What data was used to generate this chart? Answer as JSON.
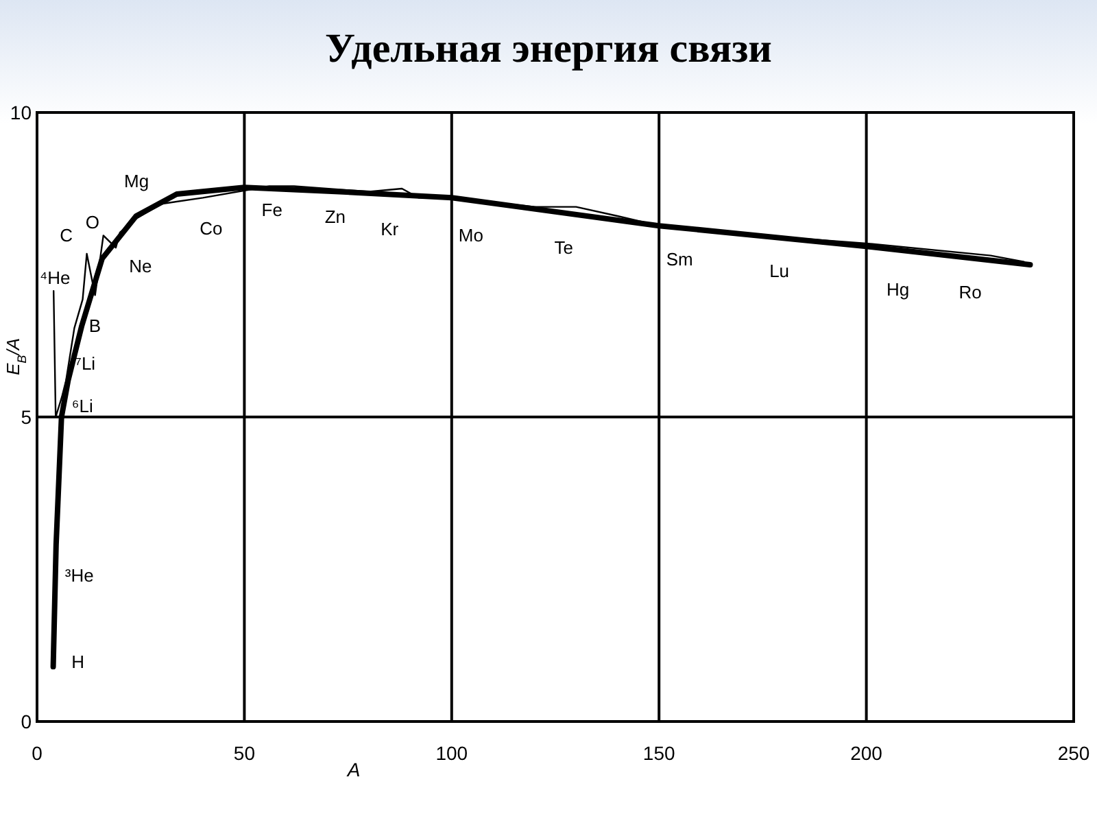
{
  "chart_data": {
    "type": "line",
    "title": "Удельная энергия связи",
    "xlabel": "A",
    "ylabel": "E$_{B}$/A",
    "xlim": [
      0,
      250
    ],
    "xticks": [
      0,
      50,
      100,
      150,
      200,
      250
    ],
    "ylim": [
      0,
      10
    ],
    "yticks": [
      0,
      5,
      10
    ],
    "grid": true,
    "marker": "none",
    "line_style": "solid",
    "series": [
      {
        "color": "#000000",
        "x": [
          3.9,
          4.6,
          5.9,
          7.5,
          10.8,
          15.7,
          23.9,
          33.7,
          50,
          72.9,
          100,
          150,
          200,
          239.5
        ],
        "values": [
          0.9,
          2.9,
          5,
          5.6,
          6.5,
          7.6,
          8.3,
          8.66,
          8.77,
          8.7,
          8.6,
          8.14,
          7.8,
          7.5
        ]
      },
      {
        "color": "#000000",
        "x": [
          4,
          4.5,
          6,
          7,
          9,
          11,
          12,
          14,
          16,
          19,
          20,
          24,
          30,
          40,
          56,
          62,
          80,
          88,
          92,
          100,
          120,
          130,
          140,
          150,
          180,
          200,
          230,
          238
        ],
        "values": [
          7.07,
          5.0,
          5.33,
          5.6,
          6.46,
          6.93,
          7.68,
          7.0,
          7.98,
          7.78,
          8.03,
          8.26,
          8.5,
          8.6,
          8.79,
          8.79,
          8.7,
          8.75,
          8.6,
          8.6,
          8.45,
          8.45,
          8.3,
          8.14,
          7.95,
          7.85,
          7.65,
          7.55
        ]
      }
    ],
    "annotations": [
      {
        "text": "H",
        "x": 3.9,
        "y": 0.9
      },
      {
        "text": "³He",
        "x": 4.6,
        "y": 2.9
      },
      {
        "text": "⁶Li",
        "x": 6,
        "y": 5.33
      },
      {
        "text": "⁷Li",
        "x": 7,
        "y": 5.6
      },
      {
        "text": "B",
        "x": 9,
        "y": 6.46
      },
      {
        "text": "⁴He",
        "x": 4,
        "y": 7.07
      },
      {
        "text": "C",
        "x": 12,
        "y": 7.68
      },
      {
        "text": "O",
        "x": 16,
        "y": 7.98
      },
      {
        "text": "Ne",
        "x": 20,
        "y": 8.03
      },
      {
        "text": "Mg",
        "x": 24,
        "y": 8.26
      },
      {
        "text": "Co",
        "x": 40,
        "y": 8.6
      },
      {
        "text": "Fe",
        "x": 56,
        "y": 8.79
      },
      {
        "text": "Zn",
        "x": 72.9,
        "y": 8.7
      },
      {
        "text": "Kr",
        "x": 88,
        "y": 8.75
      },
      {
        "text": "Mo",
        "x": 100,
        "y": 8.6
      },
      {
        "text": "Te",
        "x": 130,
        "y": 8.45
      },
      {
        "text": "Sm",
        "x": 150,
        "y": 8.14
      },
      {
        "text": "Lu",
        "x": 180,
        "y": 7.95
      },
      {
        "text": "Hg",
        "x": 200,
        "y": 7.85
      },
      {
        "text": "Ro",
        "x": 230,
        "y": 7.65
      }
    ]
  }
}
